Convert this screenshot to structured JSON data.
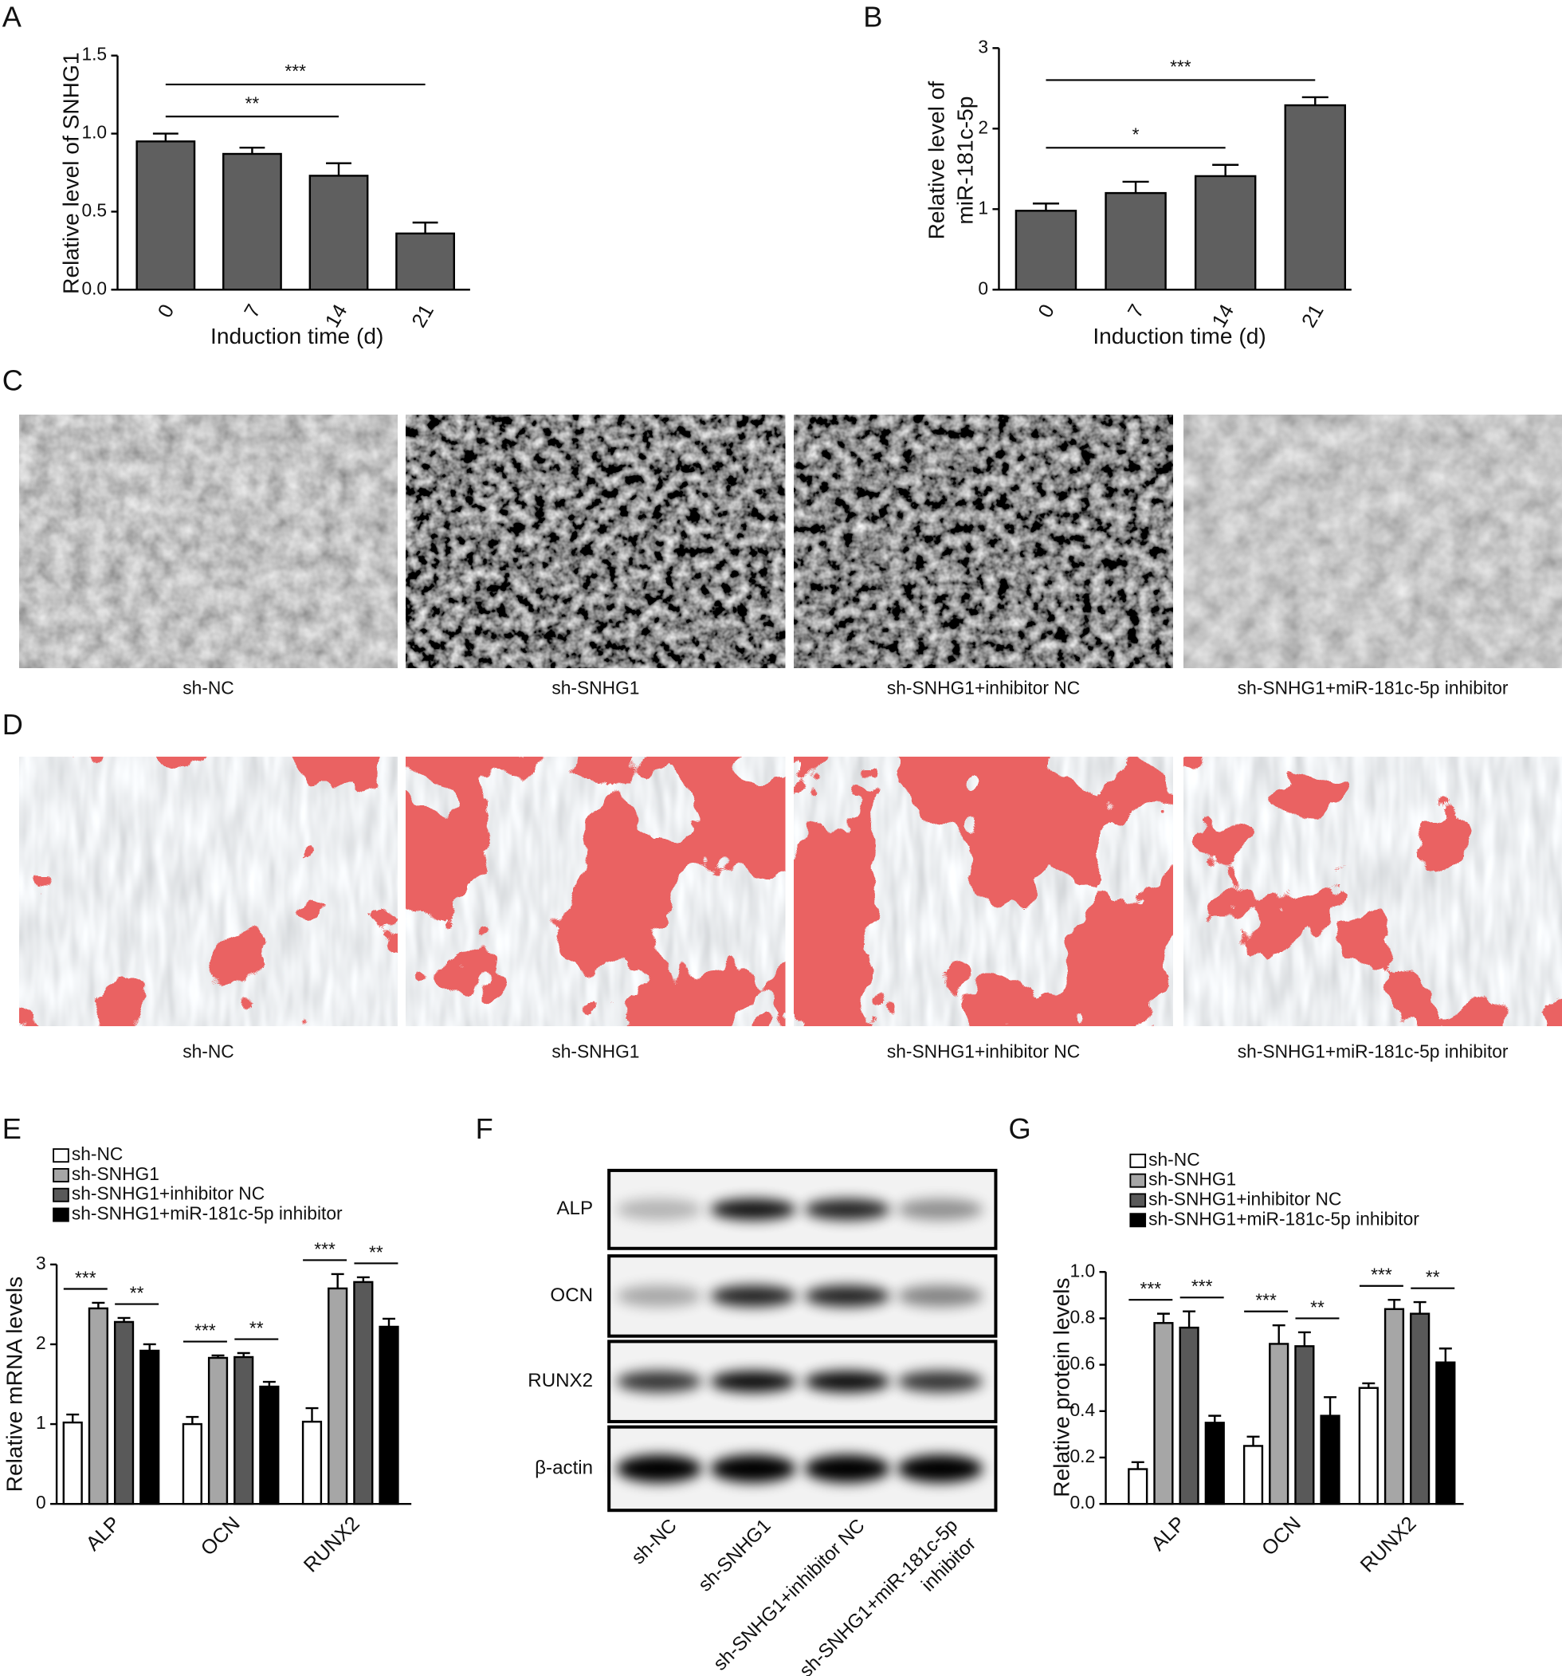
{
  "chart_data": [
    {
      "type": "bar",
      "panel_label": "A",
      "categories": [
        "0",
        "7",
        "14",
        "21"
      ],
      "values": [
        0.95,
        0.87,
        0.73,
        0.36
      ],
      "errors": [
        0.05,
        0.04,
        0.08,
        0.07
      ],
      "color": "#5f5f5f",
      "xlabel": "Induction time (d)",
      "ylabel": "Relative level of SNHG1",
      "ylim": [
        0,
        1.5
      ],
      "yticks": [
        {
          "value": 0,
          "label": "0.0"
        },
        {
          "value": 0.5,
          "label": "0.5"
        },
        {
          "value": 1,
          "label": "1.0"
        },
        {
          "value": 1.5,
          "label": "1.5"
        }
      ],
      "annotations": [
        "**",
        "***"
      ]
    },
    {
      "type": "bar",
      "panel_label": "B",
      "categories": [
        "0",
        "7",
        "14",
        "21"
      ],
      "values": [
        0.98,
        1.2,
        1.41,
        2.29
      ],
      "errors": [
        0.09,
        0.14,
        0.14,
        0.1
      ],
      "color": "#5f5f5f",
      "xlabel": "Induction time (d)",
      "ylabel": [
        "Relative level of",
        "miR-181c-5p"
      ],
      "ylim": [
        0,
        3
      ],
      "yticks": [
        0,
        1,
        2,
        3
      ],
      "annotations": [
        "*",
        "***"
      ]
    },
    {
      "type": "grouped_bar",
      "panel_label": "E",
      "categories": [
        "ALP",
        "OCN",
        "RUNX2"
      ],
      "series": [
        {
          "name": "sh-NC",
          "color": "#ffffff",
          "values": [
            1.02,
            1.0,
            1.03
          ],
          "errors": [
            0.1,
            0.09,
            0.17
          ]
        },
        {
          "name": "sh-SNHG1",
          "color": "#a6a6a6",
          "values": [
            2.45,
            1.83,
            2.7
          ],
          "errors": [
            0.07,
            0.03,
            0.18
          ]
        },
        {
          "name": "sh-SNHG1+inhibitor NC",
          "color": "#595959",
          "values": [
            2.28,
            1.84,
            2.78
          ],
          "errors": [
            0.05,
            0.05,
            0.06
          ]
        },
        {
          "name": "sh-SNHG1+miR-181c-5p inhibitor",
          "color": "#000000",
          "values": [
            1.92,
            1.47,
            2.22
          ],
          "errors": [
            0.08,
            0.06,
            0.1
          ]
        }
      ],
      "ylabel": "Relative mRNA levels",
      "ylim": [
        0,
        3
      ],
      "yticks": [
        0,
        1,
        2,
        3
      ],
      "annotations": [
        [
          "***",
          "**"
        ],
        [
          "***",
          "**"
        ],
        [
          "***",
          "**"
        ]
      ]
    },
    {
      "type": "grouped_bar",
      "panel_label": "G",
      "categories": [
        "ALP",
        "OCN",
        "RUNX2"
      ],
      "series": [
        {
          "name": "sh-NC",
          "color": "#ffffff",
          "values": [
            0.15,
            0.25,
            0.5
          ],
          "errors": [
            0.03,
            0.04,
            0.02
          ]
        },
        {
          "name": "sh-SNHG1",
          "color": "#a6a6a6",
          "values": [
            0.78,
            0.69,
            0.84
          ],
          "errors": [
            0.04,
            0.08,
            0.04
          ]
        },
        {
          "name": "sh-SNHG1+inhibitor NC",
          "color": "#595959",
          "values": [
            0.76,
            0.68,
            0.82
          ],
          "errors": [
            0.07,
            0.06,
            0.05
          ]
        },
        {
          "name": "sh-SNHG1+miR-181c-5p inhibitor",
          "color": "#000000",
          "values": [
            0.35,
            0.38,
            0.61
          ],
          "errors": [
            0.03,
            0.08,
            0.06
          ]
        }
      ],
      "ylabel": "Relative protein levels",
      "ylim": [
        0,
        1
      ],
      "yticks": [
        {
          "value": 0,
          "label": "0.0"
        },
        {
          "value": 0.2,
          "label": "0.2"
        },
        {
          "value": 0.4,
          "label": "0.4"
        },
        {
          "value": 0.6,
          "label": "0.6"
        },
        {
          "value": 0.8,
          "label": "0.8"
        },
        {
          "value": 1,
          "label": "1.0"
        }
      ],
      "annotations": [
        [
          "***",
          "***"
        ],
        [
          "***",
          "**"
        ],
        [
          "***",
          "**"
        ]
      ]
    }
  ],
  "image_panels": [
    {
      "label": "C",
      "captions": [
        "sh-NC",
        "sh-SNHG1",
        "sh-SNHG1+inhibitor NC",
        "sh-SNHG1+miR-181c-5p inhibitor"
      ]
    },
    {
      "label": "D",
      "captions": [
        "sh-NC",
        "sh-SNHG1",
        "sh-SNHG1+inhibitor NC",
        "sh-SNHG1+miR-181c-5p inhibitor"
      ]
    }
  ],
  "blot": {
    "label": "F",
    "rows": [
      "ALP",
      "OCN",
      "RUNX2",
      "β-actin"
    ],
    "columns": [
      "sh-NC",
      "sh-SNHG1",
      "sh-SNHG1+inhibitor NC",
      [
        "sh-SNHG1+miR-181c-5p",
        "inhibitor"
      ]
    ]
  }
}
